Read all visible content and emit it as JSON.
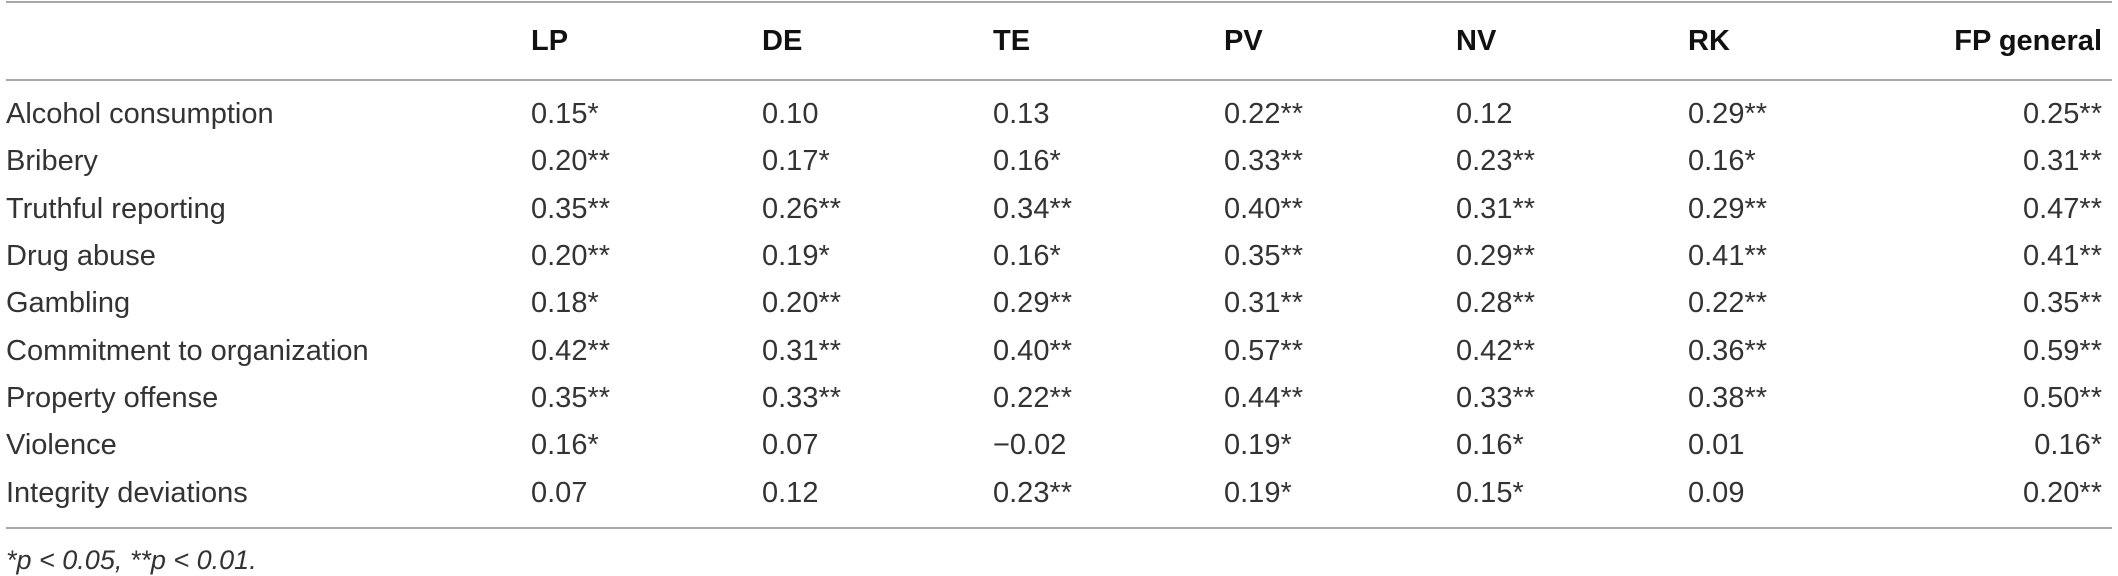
{
  "table": {
    "columns": [
      "",
      "LP",
      "DE",
      "TE",
      "PV",
      "NV",
      "RK",
      "FP general"
    ],
    "rows": [
      {
        "label": "Alcohol consumption",
        "values": [
          "0.15*",
          "0.10",
          "0.13",
          "0.22**",
          "0.12",
          "0.29**",
          "0.25**"
        ]
      },
      {
        "label": "Bribery",
        "values": [
          "0.20**",
          "0.17*",
          "0.16*",
          "0.33**",
          "0.23**",
          "0.16*",
          "0.31**"
        ]
      },
      {
        "label": "Truthful reporting",
        "values": [
          "0.35**",
          "0.26**",
          "0.34**",
          "0.40**",
          "0.31**",
          "0.29**",
          "0.47**"
        ]
      },
      {
        "label": "Drug abuse",
        "values": [
          "0.20**",
          "0.19*",
          "0.16*",
          "0.35**",
          "0.29**",
          "0.41**",
          "0.41**"
        ]
      },
      {
        "label": "Gambling",
        "values": [
          "0.18*",
          "0.20**",
          "0.29**",
          "0.31**",
          "0.28**",
          "0.22**",
          "0.35**"
        ]
      },
      {
        "label": "Commitment to organization",
        "values": [
          "0.42**",
          "0.31**",
          "0.40**",
          "0.57**",
          "0.42**",
          "0.36**",
          "0.59**"
        ]
      },
      {
        "label": "Property offense",
        "values": [
          "0.35**",
          "0.33**",
          "0.22**",
          "0.44**",
          "0.33**",
          "0.38**",
          "0.50**"
        ]
      },
      {
        "label": "Violence",
        "values": [
          "0.16*",
          "0.07",
          "−0.02",
          "0.19*",
          "0.16*",
          "0.01",
          "0.16*"
        ]
      },
      {
        "label": "Integrity deviations",
        "values": [
          "0.07",
          "0.12",
          "0.23**",
          "0.19*",
          "0.15*",
          "0.09",
          "0.20**"
        ]
      }
    ],
    "footnote": "*p < 0.05, **p < 0.01."
  }
}
